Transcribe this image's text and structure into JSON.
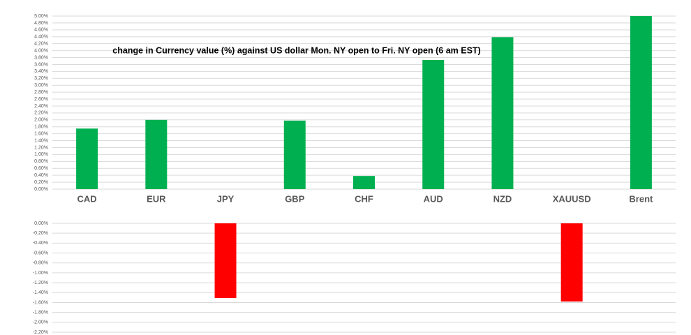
{
  "chart_data": [
    {
      "type": "bar",
      "title": "change in Currency value (%)  against US dollar Mon. NY open to Fri.  NY open (6 am EST)",
      "categories": [
        "CAD",
        "EUR",
        "JPY",
        "GBP",
        "CHF",
        "AUD",
        "NZD",
        "XAUUSD",
        "Brent"
      ],
      "values": [
        1.75,
        2.0,
        null,
        1.98,
        0.38,
        3.73,
        4.39,
        null,
        5.0
      ],
      "color": "#00b050",
      "ylim": [
        0,
        5.0
      ],
      "yticks": [
        {
          "value": 0,
          "label": "0.00%"
        },
        {
          "value": 0.2,
          "label": "0.20%"
        },
        {
          "value": 0.4,
          "label": "0.40%"
        },
        {
          "value": 0.6,
          "label": "0.60%"
        },
        {
          "value": 0.8,
          "label": "0.80%"
        },
        {
          "value": 1.0,
          "label": "1.00%"
        },
        {
          "value": 1.2,
          "label": "1.20%"
        },
        {
          "value": 1.4,
          "label": "1.40%"
        },
        {
          "value": 1.6,
          "label": "1.60%"
        },
        {
          "value": 1.8,
          "label": "1.80%"
        },
        {
          "value": 2.0,
          "label": "2.00%"
        },
        {
          "value": 2.2,
          "label": "2.20%"
        },
        {
          "value": 2.4,
          "label": "2.40%"
        },
        {
          "value": 2.6,
          "label": "2.60%"
        },
        {
          "value": 2.8,
          "label": "2.80%"
        },
        {
          "value": 3.0,
          "label": "3.00%"
        },
        {
          "value": 3.2,
          "label": "3.20%"
        },
        {
          "value": 3.4,
          "label": "3.40%"
        },
        {
          "value": 3.6,
          "label": "3.60%"
        },
        {
          "value": 3.8,
          "label": "3.80%"
        },
        {
          "value": 4.0,
          "label": "4.00%"
        },
        {
          "value": 4.2,
          "label": "4.20%"
        },
        {
          "value": 4.4,
          "label": "4.40%"
        },
        {
          "value": 4.6,
          "label": "4.60%"
        },
        {
          "value": 4.8,
          "label": "4.80%"
        },
        {
          "value": 5.0,
          "label": "5.00%"
        }
      ],
      "grid": true
    },
    {
      "type": "bar",
      "categories": [
        null,
        null,
        null,
        null,
        null,
        null,
        null,
        null,
        null
      ],
      "values": [
        null,
        null,
        -1.51,
        null,
        null,
        null,
        null,
        -1.58,
        null
      ],
      "color": "#ff0000",
      "ylim": [
        -2.2,
        0
      ],
      "yticks": [
        {
          "value": 0,
          "label": "0.00%"
        },
        {
          "value": -0.2,
          "label": "-0.20%"
        },
        {
          "value": -0.4,
          "label": "-0.40%"
        },
        {
          "value": -0.6,
          "label": "-0.60%"
        },
        {
          "value": -0.8,
          "label": "-0.80%"
        },
        {
          "value": -1.0,
          "label": "-1.00%"
        },
        {
          "value": -1.2,
          "label": "-1.20%"
        },
        {
          "value": -1.4,
          "label": "-1.40%"
        },
        {
          "value": -1.6,
          "label": "-1.60%"
        },
        {
          "value": -1.8,
          "label": "-1.80%"
        },
        {
          "value": -2.0,
          "label": "-2.00%"
        },
        {
          "value": -2.2,
          "label": "-2.20%"
        }
      ],
      "grid": true
    }
  ]
}
